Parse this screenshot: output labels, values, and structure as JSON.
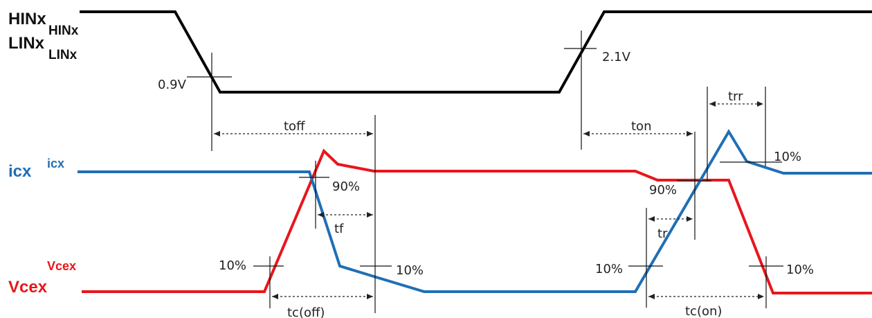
{
  "signals": {
    "hin_label": "HINx",
    "hin_sub": "HINx",
    "lin_label": "LINx",
    "lin_sub": "LINx",
    "icx_label": "icx",
    "icx_small": "icx",
    "vcex_label": "Vcex",
    "vcex_small": "Vcex"
  },
  "thresholds": {
    "v_low": "0.9V",
    "v_high": "2.1V"
  },
  "annotations": {
    "toff": "toff",
    "ton": "ton",
    "tf": "tf",
    "tr": "tr",
    "trr": "trr",
    "tc_off": "tc(off)",
    "tc_on": "tc(on)",
    "p90_left": "90%",
    "p90_right": "90%",
    "p10_vce_left": "10%",
    "p10_ic_left": "10%",
    "p10_vce_right": "10%",
    "p10_ic_right": "10%",
    "p10_trr": "10%"
  },
  "colors": {
    "input": "#000000",
    "current": "#1f6fb5",
    "voltage": "#e8161b"
  }
}
